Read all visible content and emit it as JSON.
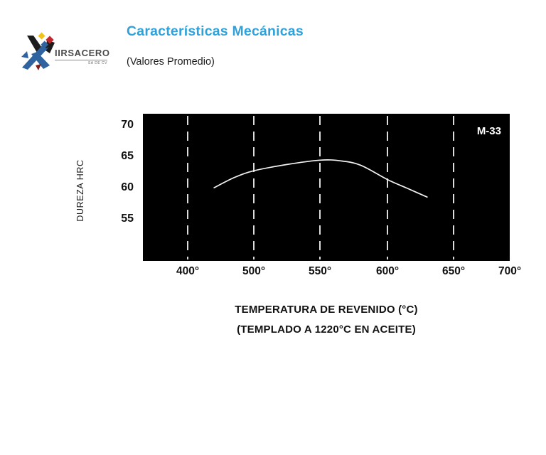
{
  "header": {
    "logo": {
      "text": "IIRSACERO",
      "subtext": "SA DE CV",
      "mark_colors": {
        "blue": "#2F639F",
        "black": "#1c1c1c",
        "yellow": "#F1C21B",
        "red": "#C1272D",
        "maroon": "#7E1F1B"
      }
    },
    "title": "Características Mecánicas",
    "title_color": "#2FA2DB",
    "subtitle": "(Valores Promedio)"
  },
  "chart_data": {
    "type": "line",
    "series_label": "M-33",
    "ylabel": "DUREZA HRC",
    "xlabel": "TEMPERATURA DE REVENIDO (°C)",
    "xlabel_note": "(TEMPLADO A 1220°C EN ACEITE)",
    "y_ticks": [
      "70",
      "65",
      "60",
      "55"
    ],
    "y_tick_values": [
      70,
      65,
      60,
      55
    ],
    "x_ticks": [
      "400°",
      "500°",
      "550°",
      "600°",
      "650°",
      "700°"
    ],
    "x_tick_values": [
      400,
      500,
      550,
      600,
      650,
      700
    ],
    "x_tick_grid": [
      true,
      true,
      true,
      true,
      true,
      false
    ],
    "x_scale": "equal spacing between labeled ticks (non-linear)",
    "points": [
      [
        440,
        60.0
      ],
      [
        470,
        61.6
      ],
      [
        500,
        62.7
      ],
      [
        525,
        63.7
      ],
      [
        550,
        64.4
      ],
      [
        565,
        64.3
      ],
      [
        580,
        63.6
      ],
      [
        600,
        61.3
      ],
      [
        615,
        59.9
      ],
      [
        630,
        58.5
      ]
    ],
    "ylim_top_value": 71.8,
    "ylim_bottom_value": 48.3,
    "plot_bg": "#000000",
    "line_color": "#f2f2f2",
    "grid_color": "#dcdcdc",
    "grid_style": "dashed-vertical",
    "legend_position": "top-right-inside"
  }
}
